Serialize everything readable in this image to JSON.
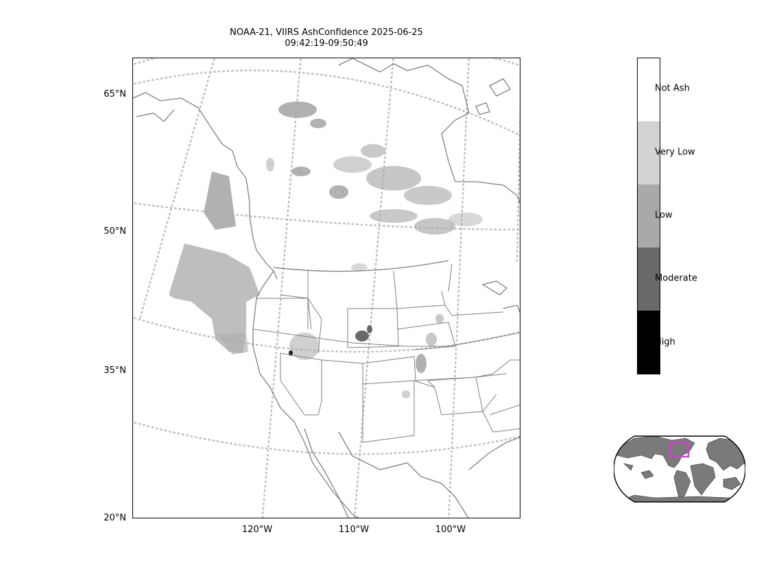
{
  "title": {
    "line1": "NOAA-21, VIIRS AshConfidence 2025-06-25",
    "line2": "09:42:19-09:50:49"
  },
  "lat_labels": [
    "65°N",
    "50°N",
    "35°N",
    "20°N"
  ],
  "lon_labels": [
    "120°W",
    "110°W",
    "100°W"
  ],
  "colorbar": {
    "classes": [
      {
        "label": "Not Ash",
        "color": "#ffffff"
      },
      {
        "label": "Very Low",
        "color": "#d3d3d3"
      },
      {
        "label": "Low",
        "color": "#a9a9a9"
      },
      {
        "label": "Moderate",
        "color": "#696969"
      },
      {
        "label": "High",
        "color": "#000000"
      }
    ]
  },
  "colors": {
    "coastline": "#808080",
    "graticule": "#bdbdbd",
    "inset_land": "#7a7a7a",
    "inset_box": "#d23fd2"
  }
}
